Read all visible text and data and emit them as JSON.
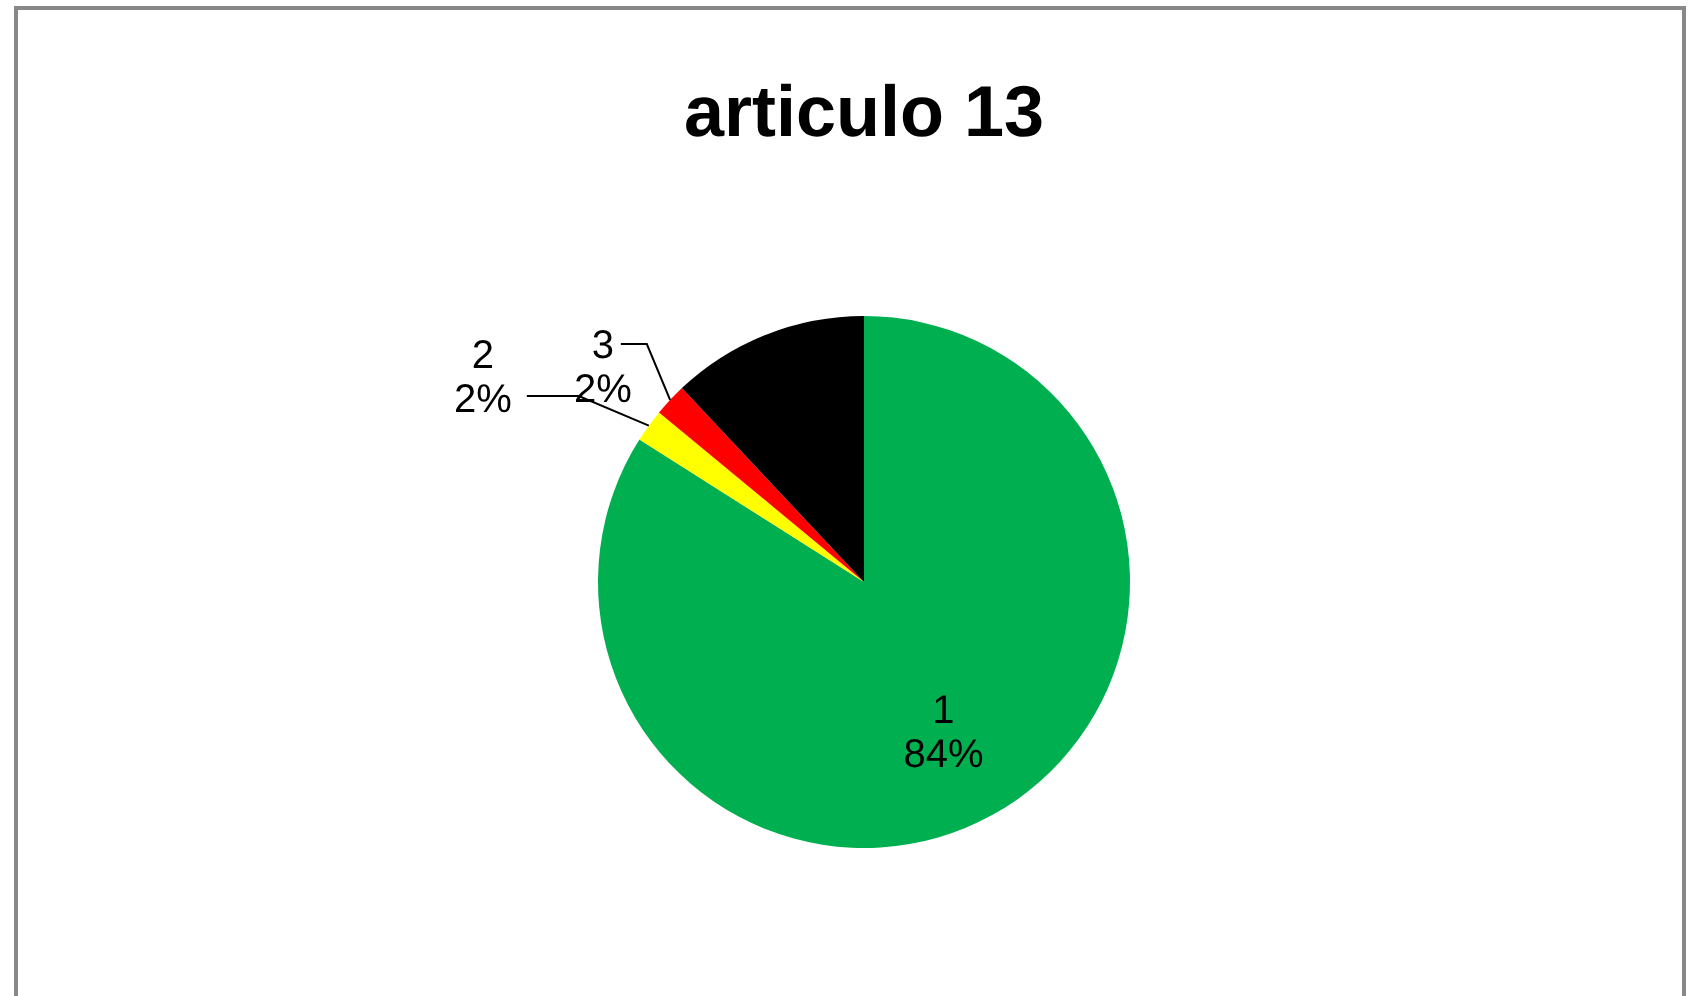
{
  "chart_data": {
    "type": "pie",
    "title": "articulo 13",
    "categories": [
      "1",
      "2",
      "3",
      null
    ],
    "values": [
      84,
      2,
      2,
      12
    ],
    "value_labels": [
      "84%",
      "2%",
      "2%",
      null
    ],
    "colors": [
      "#00b050",
      "#ffff00",
      "#ff0000",
      "#000000"
    ]
  }
}
